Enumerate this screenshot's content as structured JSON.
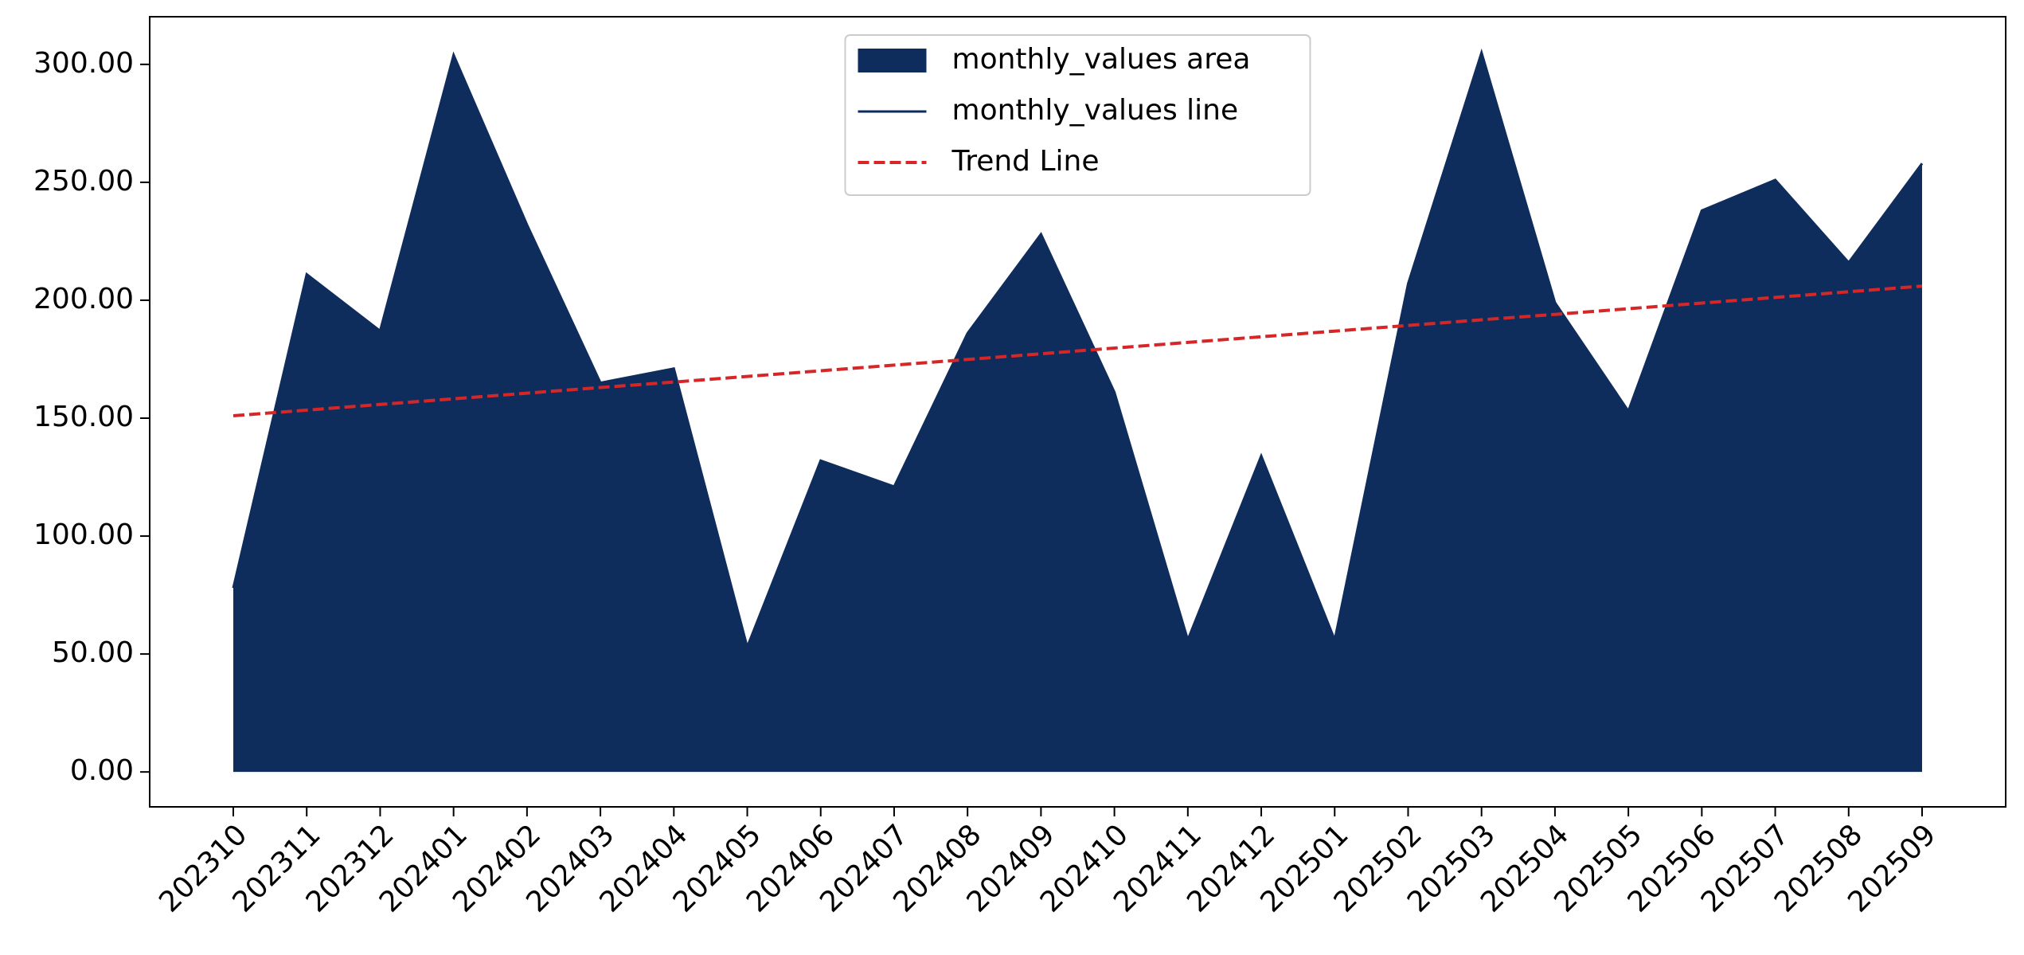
{
  "chart_data": {
    "type": "area",
    "categories": [
      "202310",
      "202311",
      "202312",
      "202401",
      "202402",
      "202403",
      "202404",
      "202405",
      "202406",
      "202407",
      "202408",
      "202409",
      "202410",
      "202411",
      "202412",
      "202501",
      "202502",
      "202503",
      "202504",
      "202505",
      "202506",
      "202507",
      "202508",
      "202509"
    ],
    "series": [
      {
        "name": "monthly_values area",
        "color": "#0f2d5c",
        "style": "area",
        "values": [
          78,
          211,
          187,
          304,
          232,
          165,
          171,
          53,
          132,
          121,
          186,
          228,
          161,
          56,
          134,
          56,
          207,
          305,
          199,
          153,
          238,
          251,
          216,
          258
        ]
      },
      {
        "name": "monthly_values line",
        "color": "#0f2d5c",
        "style": "line",
        "values": [
          78,
          211,
          187,
          304,
          232,
          165,
          171,
          53,
          132,
          121,
          186,
          228,
          161,
          56,
          134,
          56,
          207,
          305,
          199,
          153,
          238,
          251,
          216,
          258
        ]
      },
      {
        "name": "Trend Line",
        "color": "#d62728",
        "style": "dashed",
        "values": [
          151.0,
          153.4,
          155.8,
          158.2,
          160.6,
          163.0,
          165.3,
          167.7,
          170.1,
          172.5,
          174.9,
          177.3,
          179.7,
          182.1,
          184.5,
          186.9,
          189.3,
          191.7,
          194.0,
          196.4,
          198.8,
          201.2,
          203.6,
          206.0
        ]
      }
    ],
    "ylim": [
      -14.8,
      320.2
    ],
    "yticks": [
      {
        "value": 0,
        "label": "0.00"
      },
      {
        "value": 50,
        "label": "50.00"
      },
      {
        "value": 100,
        "label": "100.00"
      },
      {
        "value": 150,
        "label": "150.00"
      },
      {
        "value": 200,
        "label": "200.00"
      },
      {
        "value": 250,
        "label": "250.00"
      },
      {
        "value": 300,
        "label": "300.00"
      }
    ],
    "grid": false,
    "legend": "upper center"
  }
}
